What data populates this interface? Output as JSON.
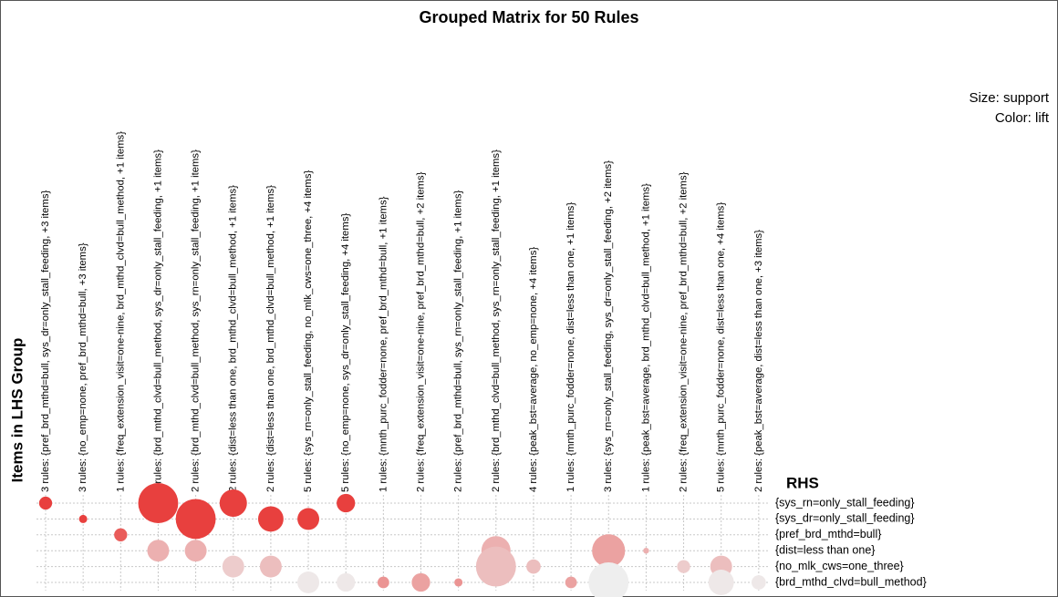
{
  "chart_data": {
    "type": "grouped_matrix",
    "title": "Grouped Matrix for 50 Rules",
    "y_label": "Items in LHS Group",
    "rhs_label": "RHS",
    "size_legend": "Size: support",
    "color_legend": "Color: lift",
    "categories": [
      "3 rules: {pref_brd_mthd=bull, sys_dr=only_stall_feeding, +3 items}",
      "3 rules: {no_emp=none, pref_brd_mthd=bull, +3 items}",
      "1 rules: {freq_extension_visit=one-nine, brd_mthd_clvd=bull_method, +1 items}",
      "2 rules: {brd_mthd_clvd=bull_method, sys_dr=only_stall_feeding, +1 items}",
      "2 rules: {brd_mthd_clvd=bull_method, sys_rn=only_stall_feeding, +1 items}",
      "2 rules: {dist=less than one, brd_mthd_clvd=bull_method, +1 items}",
      "2 rules: {dist=less than one, brd_mthd_clvd=bull_method, +1 items}",
      "5 rules: {sys_rn=only_stall_feeding, no_mlk_cws=one_three, +4 items}",
      "5 rules: {no_emp=none, sys_dr=only_stall_feeding, +4 items}",
      "1 rules: {mnth_purc_fodder=none, pref_brd_mthd=bull, +1 items}",
      "2 rules: {freq_extension_visit=one-nine, pref_brd_mthd=bull, +2 items}",
      "2 rules: {pref_brd_mthd=bull, sys_rn=only_stall_feeding, +1 items}",
      "2 rules: {brd_mthd_clvd=bull_method, sys_rn=only_stall_feeding, +1 items}",
      "4 rules: {peak_bst=average, no_emp=none, +4 items}",
      "1 rules: {mnth_purc_fodder=none, dist=less than one, +1 items}",
      "3 rules: {sys_rn=only_stall_feeding, sys_dr=only_stall_feeding, +2 items}",
      "1 rules: {peak_bst=average, brd_mthd_clvd=bull_method, +1 items}",
      "2 rules: {freq_extension_visit=one-nine, pref_brd_mthd=bull, +2 items}",
      "5 rules: {mnth_purc_fodder=none, dist=less than one, +4 items}",
      "2 rules: {peak_bst=average, dist=less than one, +3 items}"
    ],
    "series": [
      {
        "name": "{sys_rn=only_stall_feeding}",
        "values": [
          0.05,
          null,
          null,
          0.47,
          null,
          0.22,
          null,
          null,
          0.1,
          null,
          null,
          null,
          null,
          null,
          null,
          null,
          null,
          null,
          null,
          null
        ],
        "lift": [
          1.6,
          null,
          null,
          1.6,
          null,
          1.6,
          null,
          null,
          1.6,
          null,
          null,
          null,
          null,
          null,
          null,
          null,
          null,
          null,
          null,
          null
        ]
      },
      {
        "name": "{sys_dr=only_stall_feeding}",
        "values": [
          null,
          0.02,
          null,
          null,
          0.47,
          null,
          0.19,
          0.14,
          null,
          null,
          null,
          null,
          null,
          null,
          null,
          null,
          null,
          null,
          null,
          null
        ],
        "lift": [
          null,
          1.6,
          null,
          null,
          1.6,
          null,
          1.6,
          1.6,
          null,
          null,
          null,
          null,
          null,
          null,
          null,
          null,
          null,
          null,
          null,
          null
        ]
      },
      {
        "name": "{pref_brd_mthd=bull}",
        "values": [
          null,
          null,
          0.05,
          null,
          null,
          null,
          null,
          null,
          null,
          null,
          null,
          null,
          null,
          null,
          null,
          null,
          null,
          null,
          null,
          null
        ],
        "lift": [
          null,
          null,
          1.5,
          null,
          null,
          null,
          null,
          null,
          null,
          null,
          null,
          null,
          null,
          null,
          null,
          null,
          null,
          null,
          null,
          null
        ]
      },
      {
        "name": "{dist=less than one}",
        "values": [
          null,
          null,
          null,
          0.14,
          0.14,
          null,
          null,
          null,
          null,
          null,
          null,
          null,
          0.25,
          null,
          null,
          0.32,
          0.01,
          null,
          null,
          null
        ],
        "lift": [
          null,
          null,
          null,
          1.2,
          1.2,
          null,
          null,
          null,
          null,
          null,
          null,
          null,
          1.2,
          null,
          null,
          1.25,
          1.2,
          null,
          null,
          null
        ]
      },
      {
        "name": "{no_mlk_cws=one_three}",
        "values": [
          null,
          null,
          null,
          null,
          null,
          0.14,
          0.14,
          null,
          null,
          null,
          null,
          null,
          0.47,
          0.06,
          null,
          null,
          null,
          0.05,
          0.14,
          null
        ],
        "lift": [
          null,
          null,
          null,
          null,
          null,
          1.1,
          1.15,
          null,
          null,
          null,
          null,
          null,
          1.15,
          1.15,
          null,
          null,
          null,
          1.1,
          1.15,
          null
        ]
      },
      {
        "name": "{brd_mthd_clvd=bull_method}",
        "values": [
          null,
          null,
          null,
          null,
          null,
          null,
          null,
          0.14,
          0.1,
          0.04,
          0.1,
          0.02,
          null,
          null,
          0.04,
          0.47,
          null,
          null,
          0.19,
          0.06
        ],
        "lift": [
          null,
          null,
          null,
          null,
          null,
          null,
          null,
          1.0,
          1.0,
          1.3,
          1.25,
          1.3,
          null,
          null,
          1.25,
          0.98,
          null,
          null,
          1.0,
          1.0
        ]
      }
    ]
  }
}
